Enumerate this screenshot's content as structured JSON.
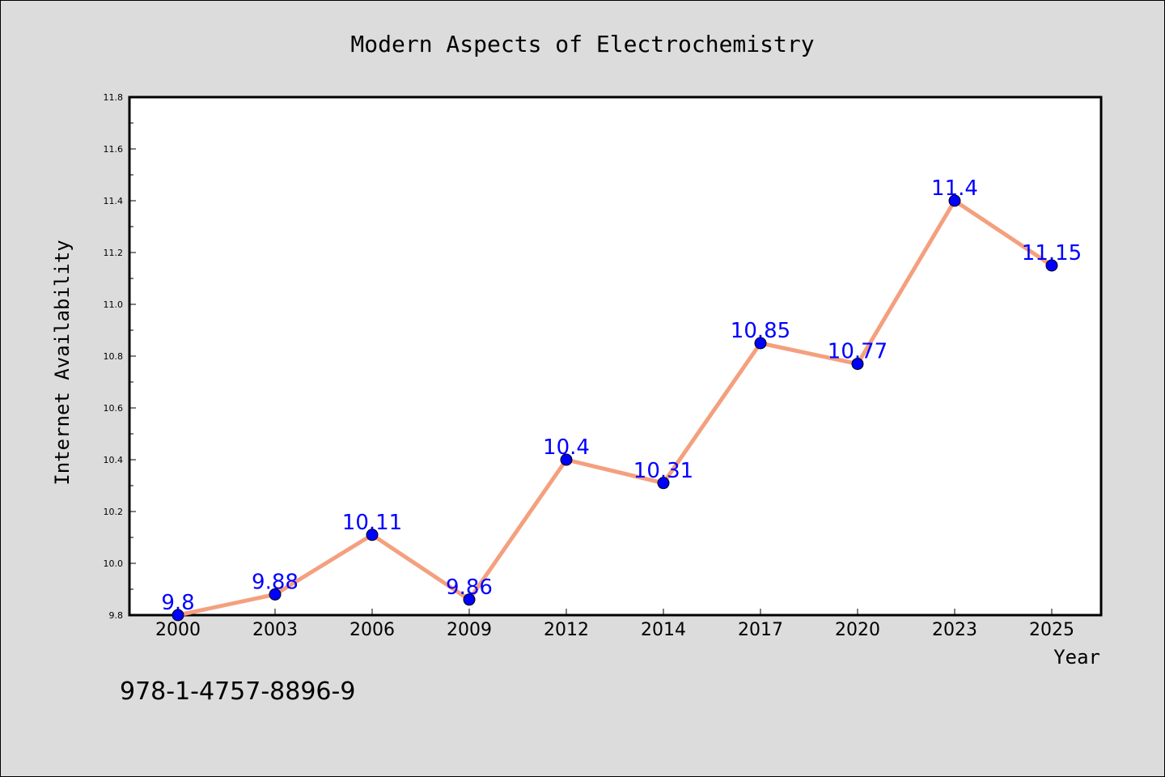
{
  "chart_data": {
    "type": "line",
    "title": "Modern Aspects of Electrochemistry",
    "xlabel": "Year",
    "ylabel": "Internet Availability",
    "categories": [
      "2000",
      "2003",
      "2006",
      "2009",
      "2012",
      "2014",
      "2017",
      "2020",
      "2023",
      "2025"
    ],
    "series": [
      {
        "values": [
          9.8,
          9.88,
          10.11,
          9.86,
          10.4,
          10.31,
          10.85,
          10.77,
          11.4,
          11.15
        ],
        "data_labels": [
          "9.8",
          "9.88",
          "10.11",
          "9.86",
          "10.4",
          "10.31",
          "10.85",
          "10.77",
          "11.4",
          "11.15"
        ]
      }
    ],
    "ylim": [
      9.8,
      11.8
    ],
    "yticks": [
      "9.8",
      "10.0",
      "10.2",
      "10.4",
      "10.6",
      "10.8",
      "11.0",
      "11.2",
      "11.4",
      "11.6",
      "11.8"
    ],
    "grid": false,
    "legend": "none",
    "colors": {
      "line": "#f4a07e",
      "marker": "#0000ff",
      "data_label": "#0000ff",
      "plot_background": "#ffffff",
      "figure_background": "#dcdcdc"
    }
  },
  "footer": {
    "isbn": "978-1-4757-8896-9"
  }
}
